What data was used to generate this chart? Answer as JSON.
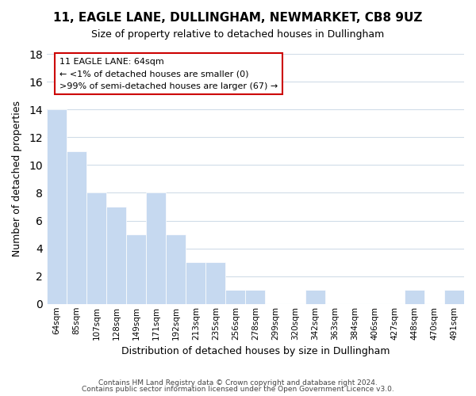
{
  "title1": "11, EAGLE LANE, DULLINGHAM, NEWMARKET, CB8 9UZ",
  "title2": "Size of property relative to detached houses in Dullingham",
  "xlabel": "Distribution of detached houses by size in Dullingham",
  "ylabel": "Number of detached properties",
  "categories": [
    "64sqm",
    "85sqm",
    "107sqm",
    "128sqm",
    "149sqm",
    "171sqm",
    "192sqm",
    "213sqm",
    "235sqm",
    "256sqm",
    "278sqm",
    "299sqm",
    "320sqm",
    "342sqm",
    "363sqm",
    "384sqm",
    "406sqm",
    "427sqm",
    "448sqm",
    "470sqm",
    "491sqm"
  ],
  "values": [
    14,
    11,
    8,
    7,
    5,
    8,
    5,
    3,
    3,
    1,
    1,
    0,
    0,
    1,
    0,
    0,
    0,
    0,
    1,
    0,
    1
  ],
  "bar_color": "#c6d9f0",
  "annotation_box_color": "#ffffff",
  "annotation_box_edge": "#cc0000",
  "annotation_line1": "11 EAGLE LANE: 64sqm",
  "annotation_line2": "← <1% of detached houses are smaller (0)",
  "annotation_line3": ">99% of semi-detached houses are larger (67) →",
  "ylim": [
    0,
    18
  ],
  "yticks": [
    0,
    2,
    4,
    6,
    8,
    10,
    12,
    14,
    16,
    18
  ],
  "footer1": "Contains HM Land Registry data © Crown copyright and database right 2024.",
  "footer2": "Contains public sector information licensed under the Open Government Licence v3.0.",
  "fig_width": 6.0,
  "fig_height": 5.0,
  "background_color": "#ffffff",
  "grid_color": "#d0dce8"
}
